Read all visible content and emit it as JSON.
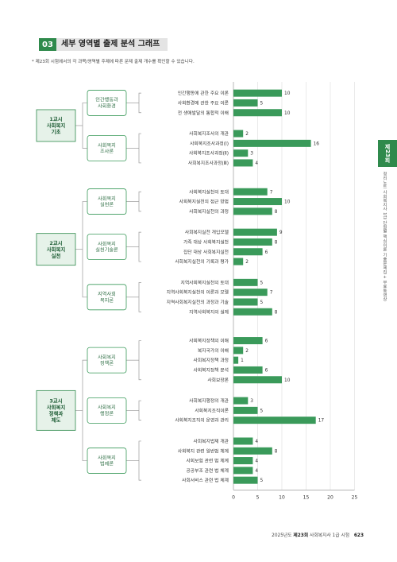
{
  "header": {
    "number": "03",
    "title": "세부 영역별 출제 분석 그래프"
  },
  "note": "* 제23회 시험에서의 각 과목/영역별 주제에 따른 문제 출제 개수를 확인할 수 있습니다.",
  "side_tab": "제23회",
  "side_text": "정리노트 사회복지사 1급 단원별 핵심이론 기출문제집 + 무료동영상",
  "footer": {
    "year": "2025년도 ",
    "bold": "제23회",
    "rest": " 사회복지사 1급 시험",
    "page": "623"
  },
  "colors": {
    "bar": "#3a9a5a",
    "subject_box": "#2f8a4c",
    "subject_fill": "#e6f2e9",
    "area_border": "#3a9a5a"
  },
  "chart_data": {
    "type": "bar",
    "orientation": "horizontal",
    "xlim": [
      0,
      25
    ],
    "xticks": [
      "0",
      "5",
      "10",
      "15",
      "20",
      "25"
    ],
    "subjects": [
      {
        "label": [
          "1교시",
          "사회복지",
          "기초"
        ],
        "areas": [
          {
            "label": [
              "인간행동과",
              "사회환경"
            ],
            "items": [
              {
                "label": "인간행동에 관한 주요 이론",
                "value": 10
              },
              {
                "label": "사회환경에 관한 주요 이론",
                "value": 5
              },
              {
                "label": "전 생애발달의 통합적 이해",
                "value": 10
              }
            ]
          },
          {
            "label": [
              "사회복지",
              "조사론"
            ],
            "items": [
              {
                "label": "사회복지조사의 개관",
                "value": 2
              },
              {
                "label": "사회복지조사과정(Ⅰ)",
                "value": 16
              },
              {
                "label": "사회복지조사과정(Ⅱ)",
                "value": 3
              },
              {
                "label": "사회복지조사과정(Ⅲ)",
                "value": 4
              }
            ]
          }
        ]
      },
      {
        "label": [
          "2교시",
          "사회복지",
          "실천"
        ],
        "areas": [
          {
            "label": [
              "사회복지",
              "실천론"
            ],
            "items": [
              {
                "label": "사회복지실천의 토대",
                "value": 7
              },
              {
                "label": "사회복지실천의 접근 방법",
                "value": 10
              },
              {
                "label": "사회복지실천의 과정",
                "value": 8
              }
            ]
          },
          {
            "label": [
              "사회복지",
              "실천기술론"
            ],
            "items": [
              {
                "label": "사회복지실천 개입모델",
                "value": 9
              },
              {
                "label": "가족 대상 사회복지실천",
                "value": 8
              },
              {
                "label": "집단 대상 사회복지실천",
                "value": 6
              },
              {
                "label": "사회복지실천의 기록과 평가",
                "value": 2
              }
            ]
          },
          {
            "label": [
              "지역사회",
              "복지론"
            ],
            "items": [
              {
                "label": "지역사회복지실천의 토대",
                "value": 5
              },
              {
                "label": "지역사회복지실천의 이론과 모델",
                "value": 7
              },
              {
                "label": "지역사회복지실천의 과정과 기술",
                "value": 5
              },
              {
                "label": "지역사회복지의 실제",
                "value": 8
              }
            ]
          }
        ]
      },
      {
        "label": [
          "3교시",
          "사회복지",
          "정책과",
          "제도"
        ],
        "areas": [
          {
            "label": [
              "사회복지",
              "정책론"
            ],
            "items": [
              {
                "label": "사회복지정책의 이해",
                "value": 6
              },
              {
                "label": "복지국가의 이해",
                "value": 2
              },
              {
                "label": "사회복지정책 과정",
                "value": 1
              },
              {
                "label": "사회복지정책 분석",
                "value": 6
              },
              {
                "label": "사회보장론",
                "value": 10
              }
            ]
          },
          {
            "label": [
              "사회복지",
              "행정론"
            ],
            "items": [
              {
                "label": "사회복지행정의 개관",
                "value": 3
              },
              {
                "label": "사회복지조직이론",
                "value": 5
              },
              {
                "label": "사회복지조직의 운영과 관리",
                "value": 17
              }
            ]
          },
          {
            "label": [
              "사회복지",
              "법제론"
            ],
            "items": [
              {
                "label": "사회복지법제 개관",
                "value": 4
              },
              {
                "label": "사회복지 관련 일반법 체계",
                "value": 8
              },
              {
                "label": "사회보험 관련 법 체계",
                "value": 4
              },
              {
                "label": "공공부조 관련 법 체계",
                "value": 4
              },
              {
                "label": "사회서비스 관련 법 체계",
                "value": 5
              }
            ]
          }
        ]
      }
    ]
  }
}
